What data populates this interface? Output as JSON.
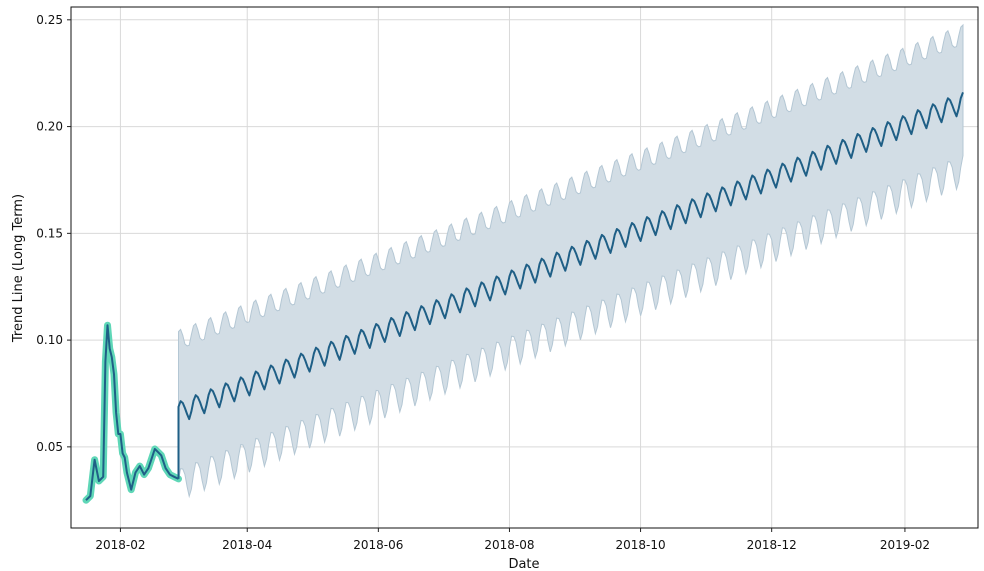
{
  "chart_data": {
    "type": "line",
    "title": "",
    "xlabel": "Date",
    "ylabel": "Trend Line (Long Term)",
    "x_range": [
      "2018-01-09",
      "2019-03-07"
    ],
    "ylim": [
      0.012,
      0.256
    ],
    "y_ticks": [
      0.05,
      0.1,
      0.15,
      0.2,
      0.25
    ],
    "y_tick_labels": [
      "0.05",
      "0.10",
      "0.15",
      "0.20",
      "0.25"
    ],
    "x_ticks": [
      "2018-02-01",
      "2018-04-01",
      "2018-06-01",
      "2018-08-01",
      "2018-10-01",
      "2018-12-01",
      "2019-02-01"
    ],
    "x_tick_labels": [
      "2018-02",
      "2018-04",
      "2018-06",
      "2018-08",
      "2018-10",
      "2018-12",
      "2019-02"
    ],
    "grid": true,
    "colors": {
      "observed_highlight": "#5fd7b7",
      "trend_line": "#1f5f86",
      "uncertainty_band": "#d2dde5",
      "band_edge": "#b4c7d4"
    },
    "series": [
      {
        "role": "observed",
        "x": [
          "2018-01-16",
          "2018-01-18",
          "2018-01-20",
          "2018-01-22",
          "2018-01-24",
          "2018-01-25",
          "2018-01-26",
          "2018-01-27",
          "2018-01-28",
          "2018-01-29",
          "2018-01-30",
          "2018-01-31",
          "2018-02-01",
          "2018-02-02",
          "2018-02-03",
          "2018-02-04",
          "2018-02-06",
          "2018-02-08",
          "2018-02-10",
          "2018-02-12",
          "2018-02-14",
          "2018-02-16",
          "2018-02-17",
          "2018-02-18",
          "2018-02-20",
          "2018-02-22",
          "2018-02-24",
          "2018-02-26",
          "2018-02-28"
        ],
        "y": [
          0.025,
          0.027,
          0.044,
          0.034,
          0.036,
          0.09,
          0.107,
          0.096,
          0.092,
          0.084,
          0.066,
          0.056,
          0.056,
          0.047,
          0.045,
          0.038,
          0.03,
          0.038,
          0.041,
          0.037,
          0.04,
          0.046,
          0.049,
          0.048,
          0.046,
          0.04,
          0.037,
          0.036,
          0.035
        ]
      },
      {
        "role": "forecast",
        "start": "2018-02-28",
        "end": "2019-02-28",
        "start_value": 0.066,
        "end_value": 0.211,
        "weekly_amplitude": 0.005,
        "band_halfwidth_start": 0.033,
        "band_halfwidth_end": 0.031
      }
    ]
  }
}
